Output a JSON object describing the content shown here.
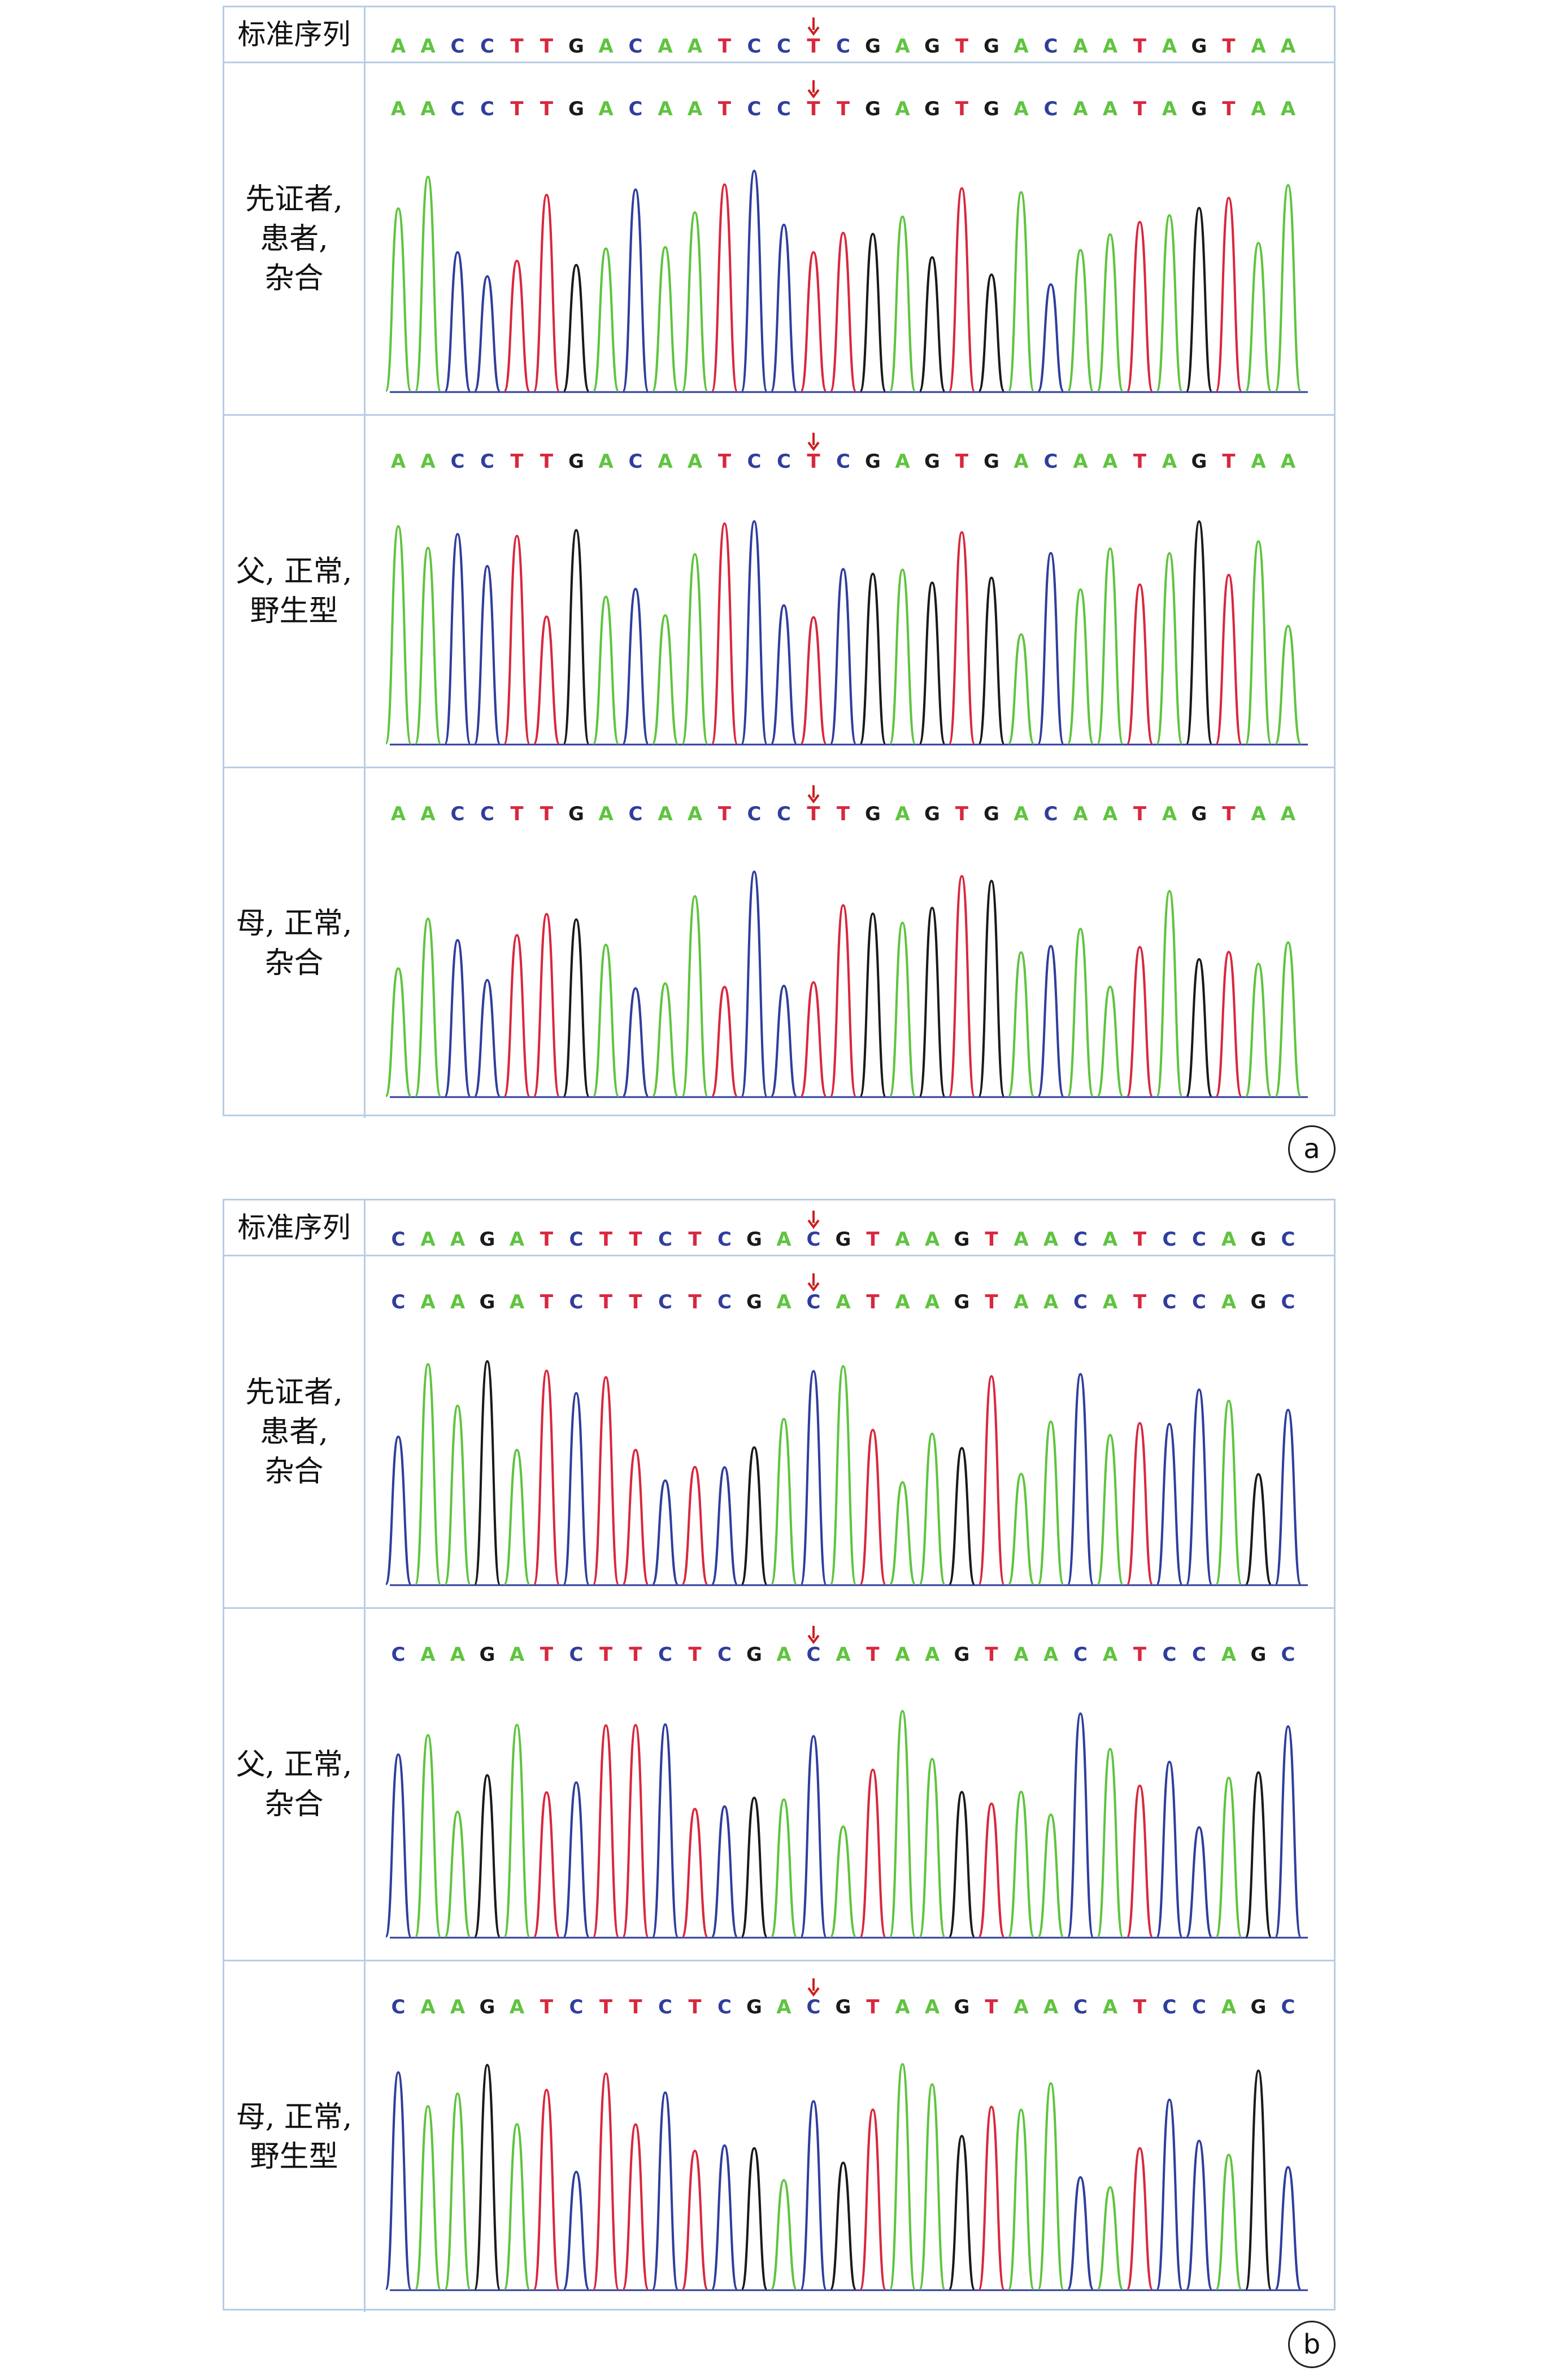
{
  "colors": {
    "A": "#5fc43f",
    "C": "#2f3e9c",
    "G": "#1a1a1a",
    "T": "#d8283e",
    "arrow": "#cc1f1f"
  },
  "panels": [
    {
      "id": "a",
      "circle_label": "a",
      "mutation_index": 14,
      "reference": {
        "label": "标准序列",
        "sequence": "AACCTTGACAATCCTCGAGTGACAATAGTAA"
      },
      "rows": [
        {
          "label": "先证者,\n患者,\n杂合",
          "sequence": "AACCTTGACAATCCTTGAGTGACAATAGTAA"
        },
        {
          "label": "父, 正常,\n野生型",
          "sequence": "AACCTTGACAATCCTCGAGTGACAATAGTAA"
        },
        {
          "label": "母, 正常,\n杂合",
          "sequence": "AACCTTGACAATCCTTGAGTGACAATAGTAA"
        }
      ]
    },
    {
      "id": "b",
      "circle_label": "b",
      "mutation_index": 14,
      "reference": {
        "label": "标准序列",
        "sequence": "CAAGATCTTCTCGACGTAAGTAACATCCAGC"
      },
      "rows": [
        {
          "label": "先证者,\n患者,\n杂合",
          "sequence": "CAAGATCTTCTCGACATAAGTAACATCCAGC"
        },
        {
          "label": "父, 正常,\n杂合",
          "sequence": "CAAGATCTTCTCGACATAAGTAACATCCAGC"
        },
        {
          "label": "母, 正常,\n野生型",
          "sequence": "CAAGATCTTCTCGACGTAAGTAACATCCAGC"
        }
      ]
    }
  ]
}
